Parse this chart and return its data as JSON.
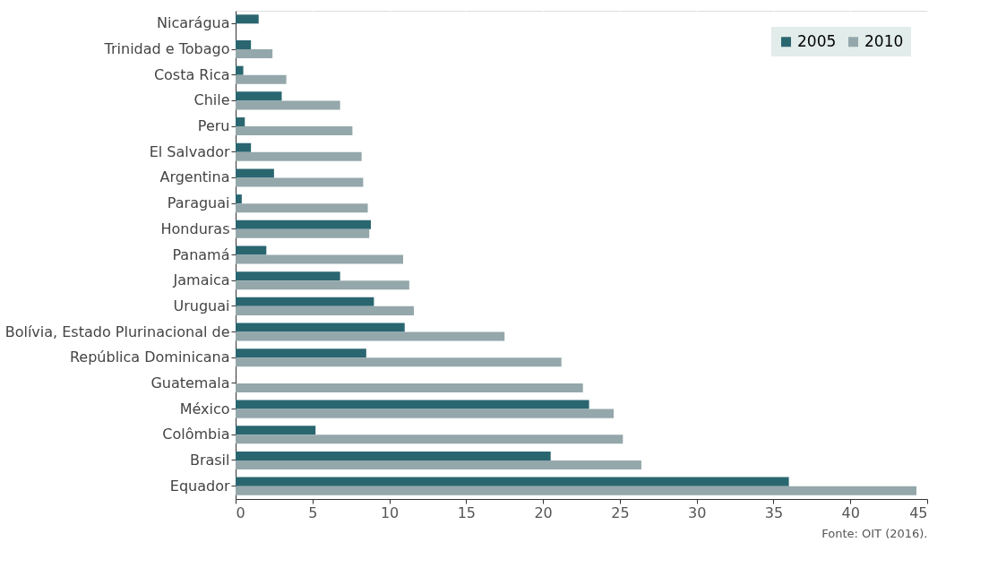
{
  "chart_data": {
    "type": "bar",
    "orientation": "horizontal",
    "categories": [
      "Nicarágua",
      "Trinidad e Tobago",
      "Costa Rica",
      "Chile",
      "Peru",
      "El Salvador",
      "Argentina",
      "Paraguai",
      "Honduras",
      "Panamá",
      "Jamaica",
      "Uruguai",
      "Bolívia, Estado Plurinacional de",
      "República Dominicana",
      "Guatemala",
      "México",
      "Colômbia",
      "Brasil",
      "Equador"
    ],
    "series": [
      {
        "name": "2005",
        "color": "#2a6670",
        "values": [
          1.5,
          1.0,
          0.5,
          3.0,
          0.6,
          1.0,
          2.5,
          0.4,
          8.8,
          2.0,
          6.8,
          9.0,
          11.0,
          8.5,
          null,
          23.0,
          5.2,
          20.5,
          36.0
        ]
      },
      {
        "name": "2010",
        "color": "#94a7ab",
        "values": [
          null,
          2.4,
          3.3,
          6.8,
          7.6,
          8.2,
          8.3,
          8.6,
          8.7,
          10.9,
          11.3,
          11.6,
          17.5,
          21.2,
          22.6,
          24.6,
          25.2,
          26.4,
          44.3
        ]
      }
    ],
    "xlim": [
      0,
      45
    ],
    "xticks": [
      0,
      5,
      10,
      15,
      20,
      25,
      30,
      35,
      40,
      45
    ],
    "grid": "x",
    "legend": "top right",
    "annotations": [
      "Fonte: OIT (2016)."
    ]
  }
}
